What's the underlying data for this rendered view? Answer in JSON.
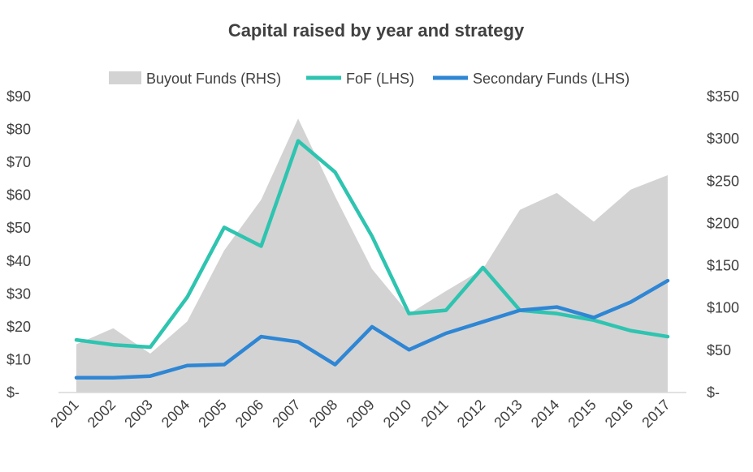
{
  "chart_data": {
    "type": "area",
    "title": "Capital raised by year and strategy",
    "categories": [
      "2001",
      "2002",
      "2003",
      "2004",
      "2005",
      "2006",
      "2007",
      "2008",
      "2009",
      "2010",
      "2011",
      "2012",
      "2013",
      "2014",
      "2015",
      "2016",
      "2017"
    ],
    "series": [
      {
        "name": "Buyout Funds (RHS)",
        "type": "area",
        "axis": "right",
        "color": "#d3d3d3",
        "values": [
          57,
          76,
          46,
          84,
          168,
          228,
          324,
          232,
          146,
          93,
          120,
          146,
          216,
          236,
          202,
          240,
          257
        ]
      },
      {
        "name": "FoF (LHS)",
        "type": "line",
        "axis": "left",
        "color": "#2ec4b0",
        "values": [
          16,
          14.5,
          13.8,
          29,
          50.2,
          44.5,
          76.5,
          67,
          47.5,
          24,
          25,
          38,
          25,
          24,
          22,
          18.8,
          17
        ]
      },
      {
        "name": "Secondary Funds (LHS)",
        "type": "line",
        "axis": "left",
        "color": "#2e86d4",
        "values": [
          4.5,
          4.5,
          5,
          8.2,
          8.5,
          17,
          15.4,
          8.5,
          20,
          13,
          18,
          21.5,
          25,
          26,
          22.8,
          27.5,
          34
        ]
      }
    ],
    "left_axis": {
      "min": 0,
      "max": 90,
      "ticks": [
        0,
        10,
        20,
        30,
        40,
        50,
        60,
        70,
        80,
        90
      ],
      "tick_labels": [
        "$-",
        "$10",
        "$20",
        "$30",
        "$40",
        "$50",
        "$60",
        "$70",
        "$80",
        "$90"
      ]
    },
    "right_axis": {
      "min": 0,
      "max": 350,
      "ticks": [
        0,
        50,
        100,
        150,
        200,
        250,
        300,
        350
      ],
      "tick_labels": [
        "$-",
        "$50",
        "$100",
        "$150",
        "$200",
        "$250",
        "$300",
        "$350"
      ]
    },
    "legend_position": "top",
    "grid": false
  }
}
